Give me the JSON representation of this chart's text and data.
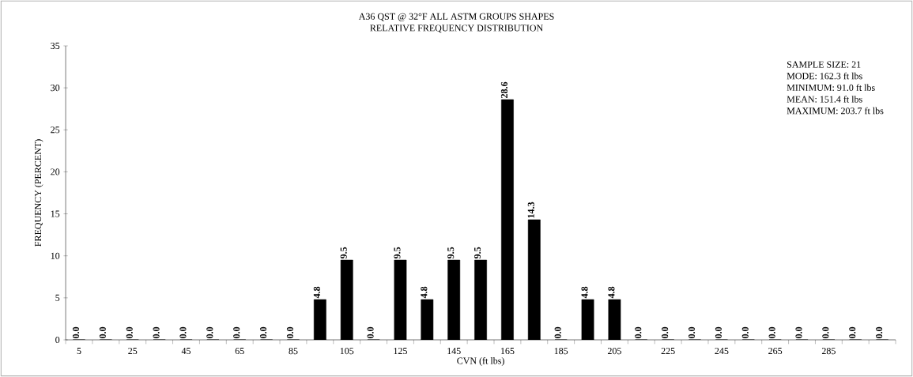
{
  "chart_data": {
    "type": "bar",
    "title": "A36 QST @ 32°F ALL ASTM GROUPS SHAPES",
    "subtitle": "RELATIVE FREQUENCY DISTRIBUTION",
    "xlabel": "CVN (ft lbs)",
    "ylabel": "FREQUENCY (PERCENT)",
    "categories": [
      "5",
      null,
      "25",
      null,
      "45",
      null,
      "65",
      null,
      "85",
      null,
      "105",
      null,
      "125",
      null,
      "145",
      null,
      "165",
      null,
      "185",
      null,
      "205",
      null,
      "225",
      null,
      "245",
      null,
      "265",
      null,
      "285",
      null,
      null
    ],
    "values": [
      0,
      0,
      0,
      0,
      0,
      0,
      0,
      0,
      0,
      4.8,
      9.5,
      0,
      9.5,
      4.8,
      9.5,
      9.5,
      28.6,
      14.3,
      0,
      4.8,
      4.8,
      0,
      0,
      0,
      0,
      0,
      0,
      0,
      0,
      0,
      0
    ],
    "value_labels": [
      "0.0",
      "0.0",
      "0.0",
      "0.0",
      "0.0",
      "0.0",
      "0.0",
      "0.0",
      "0.0",
      "4.8",
      "9.5",
      "0.0",
      "9.5",
      "4.8",
      "9.5",
      "9.5",
      "28.6",
      "14.3",
      "0.0",
      "4.8",
      "4.8",
      "0.0",
      "0.0",
      "0.0",
      "0.0",
      "0.0",
      "0.0",
      "0.0",
      "0.0",
      "0.0",
      "0.0"
    ],
    "color": "#000000",
    "ylim": [
      0,
      35
    ],
    "yticks": [
      0,
      5,
      10,
      15,
      20,
      25,
      30,
      35
    ],
    "annotations": [
      "SAMPLE SIZE: 21",
      "MODE: 162.3 ft lbs",
      "MINIMUM: 91.0 ft lbs",
      "MEAN: 151.4 ft lbs",
      "MAXIMUM: 203.7 ft lbs"
    ]
  }
}
